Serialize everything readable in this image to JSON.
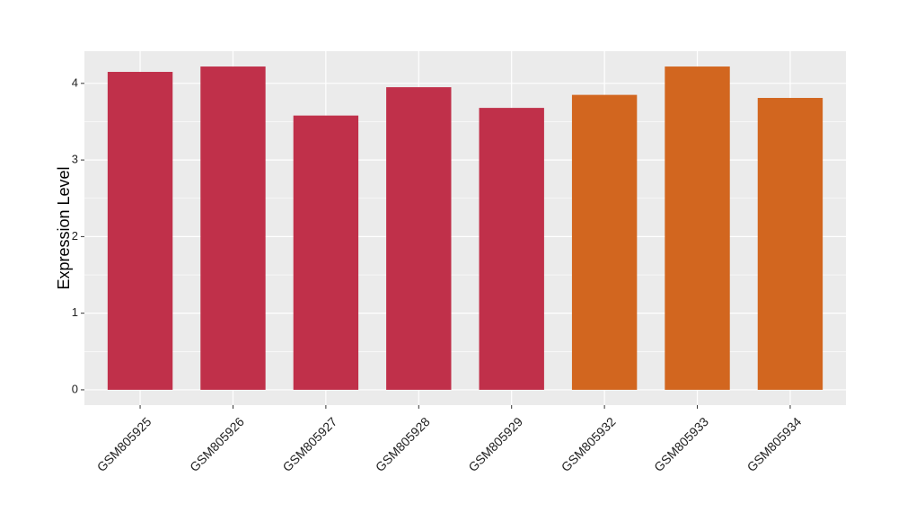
{
  "chart_data": {
    "type": "bar",
    "y_label": "Expression Level",
    "categories": [
      "GSM805925",
      "GSM805926",
      "GSM805927",
      "GSM805928",
      "GSM805929",
      "GSM805932",
      "GSM805933",
      "GSM805934"
    ],
    "values": [
      4.15,
      4.22,
      3.58,
      3.95,
      3.68,
      3.85,
      4.22,
      3.81
    ],
    "colors": [
      "#c0304a",
      "#c0304a",
      "#c0304a",
      "#c0304a",
      "#c0304a",
      "#d2661f",
      "#d2661f",
      "#d2661f"
    ],
    "ylim": [
      -0.2,
      4.42
    ],
    "yticks": [
      0,
      1,
      2,
      3,
      4
    ],
    "grid": true
  }
}
